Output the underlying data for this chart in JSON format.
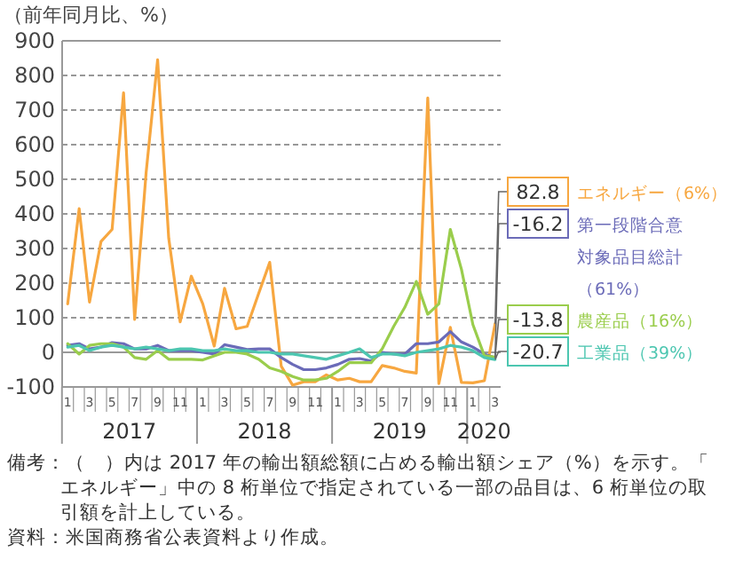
{
  "chart_data": {
    "type": "line",
    "ylabel": "（前年同月比、%）",
    "x": [
      "2017-01",
      "2017-02",
      "2017-03",
      "2017-04",
      "2017-05",
      "2017-06",
      "2017-07",
      "2017-08",
      "2017-09",
      "2017-10",
      "2017-11",
      "2017-12",
      "2018-01",
      "2018-02",
      "2018-03",
      "2018-04",
      "2018-05",
      "2018-06",
      "2018-07",
      "2018-08",
      "2018-09",
      "2018-10",
      "2018-11",
      "2018-12",
      "2019-01",
      "2019-02",
      "2019-03",
      "2019-04",
      "2019-05",
      "2019-06",
      "2019-07",
      "2019-08",
      "2019-09",
      "2019-10",
      "2019-11",
      "2019-12",
      "2020-01",
      "2020-02",
      "2020-03"
    ],
    "xlim": [
      "2016-12-17",
      "2020-03-16"
    ],
    "xticks": [
      {
        "value": "2017-01",
        "label": "1"
      },
      {
        "value": "2017-03",
        "label": "3"
      },
      {
        "value": "2017-05",
        "label": "5"
      },
      {
        "value": "2017-07",
        "label": "7"
      },
      {
        "value": "2017-09",
        "label": "9"
      },
      {
        "value": "2017-11",
        "label": "11"
      },
      {
        "value": "2018-01",
        "label": "1"
      },
      {
        "value": "2018-03",
        "label": "3"
      },
      {
        "value": "2018-05",
        "label": "5"
      },
      {
        "value": "2018-07",
        "label": "7"
      },
      {
        "value": "2018-09",
        "label": "9"
      },
      {
        "value": "2018-11",
        "label": "11"
      },
      {
        "value": "2019-01",
        "label": "1"
      },
      {
        "value": "2019-03",
        "label": "3"
      },
      {
        "value": "2019-05",
        "label": "5"
      },
      {
        "value": "2019-07",
        "label": "7"
      },
      {
        "value": "2019-09",
        "label": "9"
      },
      {
        "value": "2019-11",
        "label": "11"
      },
      {
        "value": "2020-01",
        "label": "1"
      },
      {
        "value": "2020-03",
        "label": "3"
      }
    ],
    "ylim": [
      -100,
      900
    ],
    "yticks": [
      -100,
      0,
      100,
      200,
      300,
      400,
      500,
      600,
      700,
      800,
      900
    ],
    "grid": "y",
    "legend": "right",
    "marker": "none",
    "line_style": "solid",
    "series": [
      {
        "name": "エネルギー（6%）",
        "color": "#f7a740",
        "values": [
          140,
          415,
          145,
          320,
          355,
          750,
          95,
          520,
          845,
          330,
          88,
          220,
          140,
          18,
          185,
          68,
          75,
          170,
          260,
          -40,
          -95,
          -85,
          -85,
          -65,
          -80,
          -75,
          -85,
          -85,
          -38,
          -45,
          -55,
          -60,
          735,
          -90,
          72,
          -87,
          -88,
          -82,
          82.8
        ],
        "value_labels": [
          null,
          null,
          null,
          null,
          null,
          null,
          null,
          null,
          null,
          null,
          null,
          null,
          null,
          null,
          null,
          null,
          null,
          null,
          null,
          null,
          null,
          null,
          null,
          null,
          null,
          null,
          null,
          null,
          null,
          null,
          null,
          null,
          null,
          null,
          null,
          null,
          null,
          null,
          "82.8"
        ]
      },
      {
        "name": "第一段階合意対象品目総計（61%）",
        "color": "#6b6bb8",
        "values": [
          20,
          25,
          10,
          15,
          28,
          25,
          10,
          10,
          20,
          5,
          5,
          5,
          0,
          -5,
          22,
          15,
          8,
          10,
          10,
          -15,
          -35,
          -50,
          -50,
          -45,
          -35,
          -20,
          -18,
          -25,
          0,
          -5,
          -5,
          25,
          25,
          30,
          60,
          30,
          15,
          -5,
          -16.2
        ],
        "value_labels": [
          null,
          null,
          null,
          null,
          null,
          null,
          null,
          null,
          null,
          null,
          null,
          null,
          null,
          null,
          null,
          null,
          null,
          null,
          null,
          null,
          null,
          null,
          null,
          null,
          null,
          null,
          null,
          null,
          null,
          null,
          null,
          null,
          null,
          null,
          null,
          null,
          null,
          null,
          "-16.2"
        ]
      },
      {
        "name": "農産品（16%）",
        "color": "#9acd4c",
        "values": [
          25,
          -5,
          20,
          25,
          25,
          15,
          -15,
          -20,
          5,
          -20,
          -20,
          -20,
          -22,
          -10,
          0,
          0,
          -5,
          -20,
          -45,
          -55,
          -70,
          -80,
          -80,
          -75,
          -55,
          -30,
          -30,
          -30,
          10,
          75,
          130,
          205,
          110,
          140,
          355,
          240,
          80,
          -10,
          -13.8
        ],
        "value_labels": [
          null,
          null,
          null,
          null,
          null,
          null,
          null,
          null,
          null,
          null,
          null,
          null,
          null,
          null,
          null,
          null,
          null,
          null,
          null,
          null,
          null,
          null,
          null,
          null,
          null,
          null,
          null,
          null,
          null,
          null,
          null,
          null,
          null,
          null,
          null,
          null,
          null,
          null,
          "-13.8"
        ]
      },
      {
        "name": "工業品（39%）",
        "color": "#4cc6b0",
        "values": [
          15,
          20,
          5,
          15,
          20,
          15,
          10,
          15,
          10,
          5,
          10,
          10,
          5,
          5,
          10,
          5,
          5,
          0,
          0,
          -5,
          -5,
          -10,
          -15,
          -20,
          -10,
          0,
          10,
          -15,
          -5,
          -5,
          -10,
          0,
          5,
          10,
          20,
          15,
          5,
          -15,
          -20.7
        ],
        "value_labels": [
          null,
          null,
          null,
          null,
          null,
          null,
          null,
          null,
          null,
          null,
          null,
          null,
          null,
          null,
          null,
          null,
          null,
          null,
          null,
          null,
          null,
          null,
          null,
          null,
          null,
          null,
          null,
          null,
          null,
          null,
          null,
          null,
          null,
          null,
          null,
          null,
          null,
          null,
          "-20.7"
        ]
      }
    ],
    "annotations": [
      "2017",
      "2018",
      "2019",
      "2020",
      "備考：（　）内は 2017 年の輸出額総額に占める輸出額シェア（%）を示す。「エネルギー」中の 8 桁単位で指定されている一部の品目は、6 桁単位の取引額を計上している。",
      "資料：米国商務省公表資料より作成。"
    ]
  }
}
